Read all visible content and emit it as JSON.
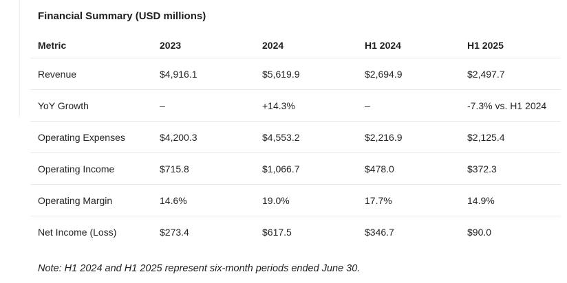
{
  "page": {
    "title": "Financial Summary (USD millions)",
    "note": "Note: H1 2024 and H1 2025 represent six-month periods ended June 30."
  },
  "table": {
    "columns": [
      "Metric",
      "2023",
      "2024",
      "H1 2024",
      "H1 2025"
    ],
    "rows": [
      {
        "metric": "Revenue",
        "values": [
          "$4,916.1",
          "$5,619.9",
          "$2,694.9",
          "$2,497.7"
        ]
      },
      {
        "metric": "YoY Growth",
        "values": [
          "–",
          "+14.3%",
          "–",
          "-7.3% vs. H1 2024"
        ]
      },
      {
        "metric": "Operating Expenses",
        "values": [
          "$4,200.3",
          "$4,553.2",
          "$2,216.9",
          "$2,125.4"
        ]
      },
      {
        "metric": "Operating Income",
        "values": [
          "$715.8",
          "$1,066.7",
          "$478.0",
          "$372.3"
        ]
      },
      {
        "metric": "Operating Margin",
        "values": [
          "14.6%",
          "19.0%",
          "17.7%",
          "14.9%"
        ]
      },
      {
        "metric": "Net Income (Loss)",
        "values": [
          "$273.4",
          "$617.5",
          "$346.7",
          "$90.0"
        ]
      }
    ]
  },
  "colors": {
    "text": "#242424",
    "row_border": "#e9e9e9",
    "background": "#ffffff"
  }
}
